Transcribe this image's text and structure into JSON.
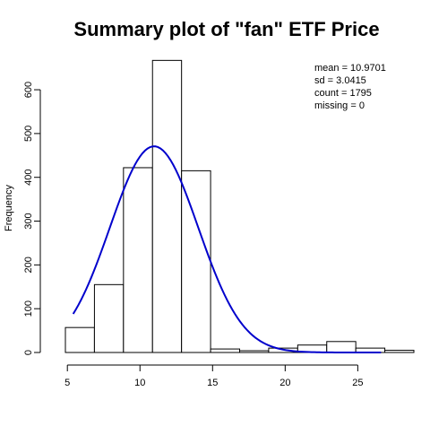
{
  "chart_data": {
    "type": "bar",
    "title": "Summary plot of \"fan\" ETF Price",
    "xlabel": "",
    "ylabel": "Frequency",
    "xlim": [
      4,
      28
    ],
    "ylim": [
      0,
      680
    ],
    "x_ticks": [
      5,
      10,
      15,
      20,
      25
    ],
    "y_ticks": [
      0,
      100,
      200,
      300,
      400,
      500,
      600
    ],
    "bins": [
      {
        "start": 4,
        "end": 6,
        "value": 57
      },
      {
        "start": 6,
        "end": 8,
        "value": 155
      },
      {
        "start": 8,
        "end": 10,
        "value": 422
      },
      {
        "start": 10,
        "end": 12,
        "value": 667
      },
      {
        "start": 12,
        "end": 14,
        "value": 415
      },
      {
        "start": 14,
        "end": 16,
        "value": 8
      },
      {
        "start": 16,
        "end": 18,
        "value": 4
      },
      {
        "start": 18,
        "end": 20,
        "value": 10
      },
      {
        "start": 20,
        "end": 22,
        "value": 17
      },
      {
        "start": 22,
        "end": 24,
        "value": 25
      },
      {
        "start": 24,
        "end": 26,
        "value": 10
      },
      {
        "start": 26,
        "end": 28,
        "value": 5
      }
    ],
    "density_curve": {
      "color": "#0000cc",
      "mean": 10.9701,
      "sd": 3.0415,
      "count": 1795,
      "binwidth": 2,
      "x_range": [
        5.4,
        26.6
      ]
    },
    "stats": [
      {
        "label": "mean = ",
        "value": "10.9701"
      },
      {
        "label": "sd = ",
        "value": "3.0415"
      },
      {
        "label": "count = ",
        "value": "1795"
      },
      {
        "label": "missing = ",
        "value": "0"
      }
    ]
  }
}
